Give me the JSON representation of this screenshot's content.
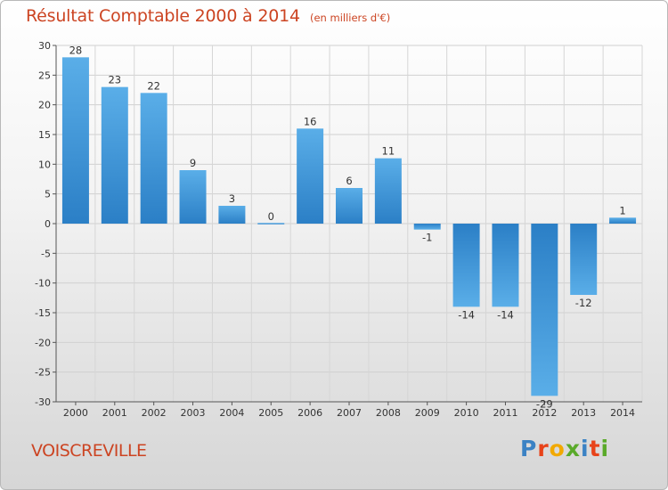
{
  "header": {
    "title": "Résultat Comptable 2000 à 2014",
    "subtitle": "(en milliers d'€)"
  },
  "footer": {
    "commune": "VOISCREVILLE",
    "brand_logo": "Proxiti"
  },
  "colors": {
    "title": "#cc4422",
    "bar_light": "#5aaee8",
    "bar_dark": "#2b7fc6"
  },
  "chart_data": {
    "type": "bar",
    "title": "Résultat Comptable 2000 à 2014",
    "subtitle": "(en milliers d'€)",
    "xlabel": "",
    "ylabel": "",
    "categories": [
      "2000",
      "2001",
      "2002",
      "2003",
      "2004",
      "2005",
      "2006",
      "2007",
      "2008",
      "2009",
      "2010",
      "2011",
      "2012",
      "2013",
      "2014"
    ],
    "values": [
      28,
      23,
      22,
      9,
      3,
      0,
      16,
      6,
      11,
      -1,
      -14,
      -14,
      -29,
      -12,
      1
    ],
    "data_labels": [
      "28",
      "23",
      "22",
      "9",
      "3",
      "0",
      "16",
      "6",
      "11",
      "-1",
      "-14",
      "-14",
      "-29",
      "-12",
      "1"
    ],
    "ylim": [
      -30,
      30
    ],
    "yticks": [
      30,
      25,
      20,
      15,
      10,
      5,
      0,
      -5,
      -10,
      -15,
      -20,
      -25,
      -30
    ],
    "ytick_labels": [
      "30",
      "25",
      "20",
      "15",
      "10",
      "5",
      "0",
      "-5",
      "-10",
      "-15",
      "-20",
      "-25",
      "-30"
    ],
    "grid": true,
    "legend": "none"
  }
}
